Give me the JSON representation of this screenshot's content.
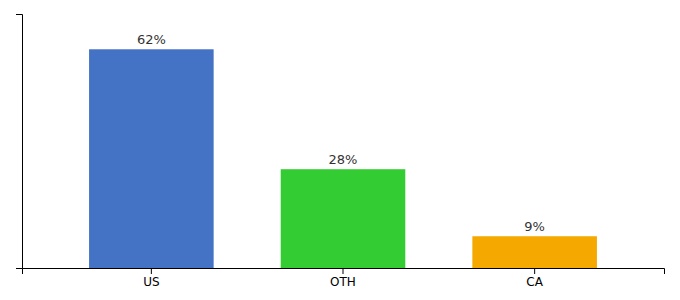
{
  "chart_data": {
    "type": "bar",
    "categories": [
      "US",
      "OTH",
      "CA"
    ],
    "values": [
      62,
      28,
      9
    ],
    "value_labels": [
      "62%",
      "28%",
      "9%"
    ],
    "colors": [
      "#4472c4",
      "#33cc33",
      "#f5a800"
    ],
    "ylim": [
      0,
      72
    ],
    "data_labels": true,
    "tick_labels": "x"
  }
}
